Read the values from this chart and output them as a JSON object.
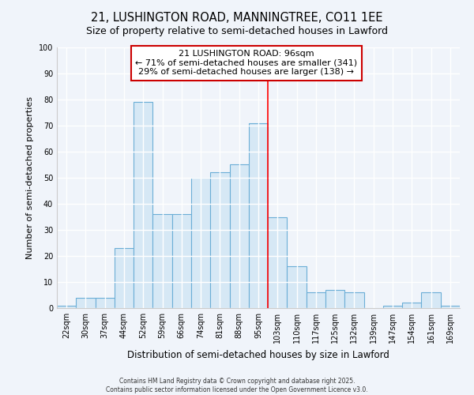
{
  "title": "21, LUSHINGTON ROAD, MANNINGTREE, CO11 1EE",
  "subtitle": "Size of property relative to semi-detached houses in Lawford",
  "xlabel": "Distribution of semi-detached houses by size in Lawford",
  "ylabel": "Number of semi-detached properties",
  "bin_labels": [
    "22sqm",
    "30sqm",
    "37sqm",
    "44sqm",
    "52sqm",
    "59sqm",
    "66sqm",
    "74sqm",
    "81sqm",
    "88sqm",
    "95sqm",
    "103sqm",
    "110sqm",
    "117sqm",
    "125sqm",
    "132sqm",
    "139sqm",
    "147sqm",
    "154sqm",
    "161sqm",
    "169sqm"
  ],
  "bar_heights": [
    1,
    4,
    4,
    23,
    79,
    36,
    36,
    50,
    52,
    55,
    71,
    35,
    16,
    6,
    7,
    6,
    0,
    1,
    2,
    6,
    1
  ],
  "bar_color": "#d6e8f5",
  "bar_edge_color": "#6baed6",
  "highlight_bin_index": 10,
  "annotation_title": "21 LUSHINGTON ROAD: 96sqm",
  "annotation_line1": "← 71% of semi-detached houses are smaller (341)",
  "annotation_line2": "29% of semi-detached houses are larger (138) →",
  "annotation_box_color": "#ffffff",
  "annotation_box_edge": "#cc0000",
  "ylim": [
    0,
    100
  ],
  "yticks": [
    0,
    10,
    20,
    30,
    40,
    50,
    60,
    70,
    80,
    90,
    100
  ],
  "footer_line1": "Contains HM Land Registry data © Crown copyright and database right 2025.",
  "footer_line2": "Contains public sector information licensed under the Open Government Licence v3.0.",
  "bg_color": "#f0f4fa",
  "plot_bg_color": "#f0f4fa",
  "grid_color": "#ffffff",
  "title_fontsize": 10.5,
  "subtitle_fontsize": 9,
  "ylabel_fontsize": 8,
  "xlabel_fontsize": 8.5,
  "tick_fontsize": 7,
  "annot_fontsize": 8,
  "footer_fontsize": 5.5
}
